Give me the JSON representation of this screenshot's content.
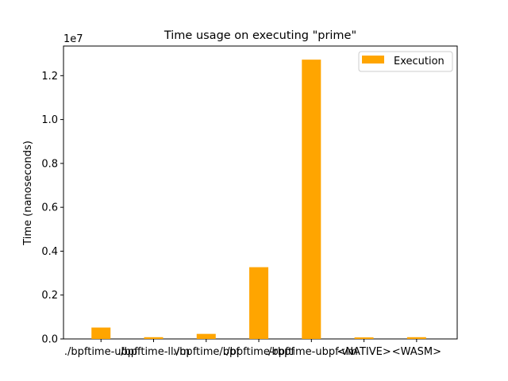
{
  "chart_data": {
    "type": "bar",
    "title": "Time usage on executing \"prime\"",
    "xlabel": "",
    "ylabel": "Time (nanoseconds)",
    "y_offset_text": "1e7",
    "categories": [
      "./bpftime-ubpf",
      "./bpftime-llvm",
      "./bpftime/bpf",
      "./bpftime-rbpf",
      "./bpftime-ubpf-vm",
      "<NATIVE>",
      "<WASM>"
    ],
    "series": [
      {
        "name": "Execution",
        "color": "#ffa500",
        "values": [
          520000,
          80000,
          230000,
          3270000,
          12730000,
          70000,
          80000
        ]
      }
    ],
    "ylim": [
      0,
      13350000
    ],
    "yticks": [
      0,
      2000000,
      4000000,
      6000000,
      8000000,
      10000000,
      12000000
    ],
    "ytick_labels": [
      "0.0",
      "0.2",
      "0.4",
      "0.6",
      "0.8",
      "1.0",
      "1.2"
    ],
    "grid": false,
    "legend_position": "top-right"
  }
}
